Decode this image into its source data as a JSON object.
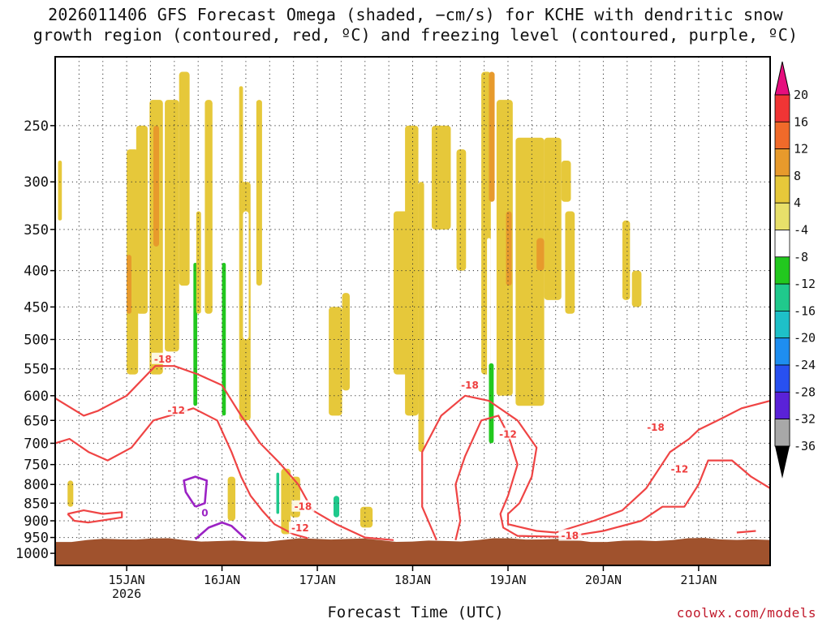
{
  "title_line1": "2026011406 GFS Forecast Omega (shaded, −cm/s) for KCHE with dendritic snow",
  "title_line2": "growth region (contoured, red, ºC) and freezing level (contoured, purple, ºC)",
  "credit": "coolwx.com/models",
  "chart_data": {
    "type": "heatmap",
    "xlabel": "Forecast Time (UTC)",
    "ylabel": "",
    "x_ticks": [
      {
        "label": "15JAN",
        "sub": "2026",
        "day": 15
      },
      {
        "label": "16JAN",
        "sub": "",
        "day": 16
      },
      {
        "label": "17JAN",
        "sub": "",
        "day": 17
      },
      {
        "label": "18JAN",
        "sub": "",
        "day": 18
      },
      {
        "label": "19JAN",
        "sub": "",
        "day": 19
      },
      {
        "label": "20JAN",
        "sub": "",
        "day": 20
      },
      {
        "label": "21JAN",
        "sub": "",
        "day": 21
      }
    ],
    "xlim": [
      14.25,
      21.75
    ],
    "y_ticks": [
      250,
      300,
      350,
      400,
      450,
      500,
      550,
      600,
      650,
      700,
      750,
      800,
      850,
      900,
      950,
      1000
    ],
    "ylim": [
      1040,
      200
    ],
    "y_scale": "log-pressure",
    "colorbar": {
      "labels": [
        "20",
        "16",
        "12",
        "8",
        "4",
        "-4",
        "-8",
        "-12",
        "-16",
        "-20",
        "-24",
        "-28",
        "-32",
        "-36"
      ],
      "colors": [
        "#f03535",
        "#f06a2a",
        "#e79a2c",
        "#e6c83a",
        "#e8e06a",
        "#ffffff",
        "#22c81e",
        "#20c98c",
        "#1ec0c8",
        "#1e8ef0",
        "#2850f0",
        "#5a22d8",
        "#8a1cc0",
        "#a8a8a8"
      ],
      "top_arrow_color": "#e60e7e",
      "bottom_arrow_color": "#000000"
    },
    "terrain_color": "#a0522d",
    "surface_pressure": 958,
    "omega_shading": [
      {
        "x0": 14.28,
        "x1": 14.32,
        "p0": 280,
        "p1": 340,
        "v": 5
      },
      {
        "x0": 14.38,
        "x1": 14.44,
        "p0": 790,
        "p1": 860,
        "v": 5
      },
      {
        "x0": 14.92,
        "x1": 14.95,
        "p0": 200,
        "p1": 240,
        "v": -6
      },
      {
        "x0": 15.0,
        "x1": 15.04,
        "p0": 210,
        "p1": 260,
        "v": -6
      },
      {
        "x0": 15.0,
        "x1": 15.12,
        "p0": 270,
        "p1": 560,
        "v": 5
      },
      {
        "x0": 15.0,
        "x1": 15.05,
        "p0": 380,
        "p1": 460,
        "v": 10
      },
      {
        "x0": 15.1,
        "x1": 15.22,
        "p0": 250,
        "p1": 460,
        "v": 5
      },
      {
        "x0": 15.24,
        "x1": 15.38,
        "p0": 230,
        "p1": 560,
        "v": 6
      },
      {
        "x0": 15.28,
        "x1": 15.34,
        "p0": 250,
        "p1": 370,
        "v": 10
      },
      {
        "x0": 15.4,
        "x1": 15.55,
        "p0": 230,
        "p1": 520,
        "v": 5
      },
      {
        "x0": 15.55,
        "x1": 15.66,
        "p0": 210,
        "p1": 420,
        "v": 5
      },
      {
        "x0": 15.68,
        "x1": 15.76,
        "p0": 300,
        "p1": 900,
        "v": -6
      },
      {
        "x0": 15.7,
        "x1": 15.74,
        "p0": 390,
        "p1": 620,
        "v": -10
      },
      {
        "x0": 15.73,
        "x1": 15.78,
        "p0": 330,
        "p1": 460,
        "v": 6
      },
      {
        "x0": 15.82,
        "x1": 15.9,
        "p0": 230,
        "p1": 460,
        "v": 5
      },
      {
        "x0": 15.98,
        "x1": 16.06,
        "p0": 300,
        "p1": 820,
        "v": -6
      },
      {
        "x0": 16.0,
        "x1": 16.04,
        "p0": 390,
        "p1": 640,
        "v": -11
      },
      {
        "x0": 16.08,
        "x1": 16.16,
        "p0": 210,
        "p1": 650,
        "v": -6
      },
      {
        "x0": 16.06,
        "x1": 16.14,
        "p0": 780,
        "p1": 900,
        "v": 5
      },
      {
        "x0": 16.18,
        "x1": 16.3,
        "p0": 300,
        "p1": 650,
        "v": 5
      },
      {
        "x0": 16.22,
        "x1": 16.28,
        "p0": 330,
        "p1": 500,
        "v": -6
      },
      {
        "x0": 16.36,
        "x1": 16.42,
        "p0": 230,
        "p1": 420,
        "v": 5
      },
      {
        "x0": 16.56,
        "x1": 16.6,
        "p0": 720,
        "p1": 900,
        "v": -6
      },
      {
        "x0": 16.57,
        "x1": 16.6,
        "p0": 770,
        "p1": 880,
        "v": -12
      },
      {
        "x0": 16.62,
        "x1": 16.72,
        "p0": 760,
        "p1": 940,
        "v": 5
      },
      {
        "x0": 16.72,
        "x1": 16.82,
        "p0": 780,
        "p1": 890,
        "v": 5
      },
      {
        "x0": 16.18,
        "x1": 16.22,
        "p0": 220,
        "p1": 330,
        "v": 5
      },
      {
        "x0": 16.85,
        "x1": 16.9,
        "p0": 380,
        "p1": 420,
        "v": -6
      },
      {
        "x0": 16.9,
        "x1": 16.92,
        "p0": 480,
        "p1": 500,
        "v": -6
      },
      {
        "x0": 17.12,
        "x1": 17.26,
        "p0": 450,
        "p1": 640,
        "v": 5
      },
      {
        "x0": 17.26,
        "x1": 17.34,
        "p0": 430,
        "p1": 590,
        "v": 5
      },
      {
        "x0": 17.14,
        "x1": 17.26,
        "p0": 810,
        "p1": 910,
        "v": -7
      },
      {
        "x0": 17.17,
        "x1": 17.23,
        "p0": 830,
        "p1": 890,
        "v": -12
      },
      {
        "x0": 17.45,
        "x1": 17.58,
        "p0": 860,
        "p1": 920,
        "v": 5
      },
      {
        "x0": 17.8,
        "x1": 17.95,
        "p0": 330,
        "p1": 560,
        "v": 5
      },
      {
        "x0": 17.92,
        "x1": 18.06,
        "p0": 250,
        "p1": 640,
        "v": 5
      },
      {
        "x0": 18.06,
        "x1": 18.12,
        "p0": 300,
        "p1": 720,
        "v": 5
      },
      {
        "x0": 18.2,
        "x1": 18.4,
        "p0": 250,
        "p1": 350,
        "v": 5
      },
      {
        "x0": 18.36,
        "x1": 18.42,
        "p0": 400,
        "p1": 460,
        "v": -6
      },
      {
        "x0": 18.46,
        "x1": 18.56,
        "p0": 270,
        "p1": 400,
        "v": 5
      },
      {
        "x0": 18.72,
        "x1": 18.82,
        "p0": 210,
        "p1": 560,
        "v": 5
      },
      {
        "x0": 18.8,
        "x1": 18.86,
        "p0": 210,
        "p1": 320,
        "v": 10
      },
      {
        "x0": 18.78,
        "x1": 18.82,
        "p0": 360,
        "p1": 700,
        "v": -6
      },
      {
        "x0": 18.8,
        "x1": 18.85,
        "p0": 540,
        "p1": 700,
        "v": -9
      },
      {
        "x0": 18.62,
        "x1": 18.68,
        "p0": 760,
        "p1": 800,
        "v": -6
      },
      {
        "x0": 18.88,
        "x1": 19.05,
        "p0": 230,
        "p1": 600,
        "v": 5
      },
      {
        "x0": 18.98,
        "x1": 19.04,
        "p0": 330,
        "p1": 420,
        "v": 10
      },
      {
        "x0": 19.08,
        "x1": 19.38,
        "p0": 260,
        "p1": 620,
        "v": 5
      },
      {
        "x0": 19.38,
        "x1": 19.56,
        "p0": 260,
        "p1": 440,
        "v": 5
      },
      {
        "x0": 19.3,
        "x1": 19.38,
        "p0": 360,
        "p1": 400,
        "v": 10
      },
      {
        "x0": 19.6,
        "x1": 19.7,
        "p0": 330,
        "p1": 460,
        "v": 5
      },
      {
        "x0": 19.56,
        "x1": 19.66,
        "p0": 280,
        "p1": 320,
        "v": 5
      },
      {
        "x0": 20.2,
        "x1": 20.28,
        "p0": 340,
        "p1": 440,
        "v": 5
      },
      {
        "x0": 20.3,
        "x1": 20.4,
        "p0": 400,
        "p1": 450,
        "v": 5
      },
      {
        "x0": 20.94,
        "x1": 21.05,
        "p0": 520,
        "p1": 560,
        "v": -6
      },
      {
        "x0": 20.84,
        "x1": 20.9,
        "p0": 590,
        "p1": 650,
        "v": -6
      },
      {
        "x0": 21.22,
        "x1": 21.3,
        "p0": 300,
        "p1": 310,
        "v": -6
      }
    ],
    "contours": [
      {
        "kind": "dgz",
        "label": "-18",
        "points": [
          [
            14.25,
            605
          ],
          [
            14.55,
            640
          ],
          [
            14.7,
            630
          ],
          [
            15.0,
            600
          ],
          [
            15.3,
            545
          ],
          [
            15.5,
            545
          ],
          [
            15.75,
            560
          ],
          [
            16.0,
            580
          ],
          [
            16.2,
            640
          ],
          [
            16.4,
            700
          ],
          [
            16.6,
            745
          ],
          [
            16.8,
            800
          ],
          [
            16.95,
            870
          ],
          [
            17.2,
            910
          ],
          [
            17.5,
            950
          ],
          [
            17.8,
            958
          ]
        ]
      },
      {
        "kind": "dgz",
        "label": "-12",
        "points": [
          [
            14.25,
            700
          ],
          [
            14.4,
            690
          ],
          [
            14.6,
            720
          ],
          [
            14.8,
            740
          ],
          [
            15.05,
            710
          ],
          [
            15.28,
            650
          ],
          [
            15.45,
            640
          ],
          [
            15.7,
            625
          ],
          [
            15.95,
            650
          ],
          [
            16.1,
            720
          ],
          [
            16.2,
            780
          ],
          [
            16.3,
            830
          ],
          [
            16.42,
            870
          ],
          [
            16.55,
            910
          ],
          [
            16.75,
            940
          ],
          [
            16.9,
            952
          ]
        ]
      },
      {
        "kind": "dgz",
        "label": "",
        "points": [
          [
            14.38,
            880
          ],
          [
            14.55,
            870
          ],
          [
            14.75,
            880
          ],
          [
            14.95,
            875
          ],
          [
            14.95,
            890
          ],
          [
            14.6,
            905
          ],
          [
            14.45,
            900
          ],
          [
            14.38,
            880
          ]
        ]
      },
      {
        "kind": "dgz",
        "label": "-18",
        "points": [
          [
            18.25,
            958
          ],
          [
            18.1,
            860
          ],
          [
            18.1,
            720
          ],
          [
            18.3,
            640
          ],
          [
            18.55,
            600
          ],
          [
            18.8,
            610
          ],
          [
            19.1,
            650
          ],
          [
            19.3,
            710
          ],
          [
            19.25,
            780
          ],
          [
            19.12,
            850
          ],
          [
            19.0,
            880
          ],
          [
            19.0,
            910
          ],
          [
            19.3,
            930
          ],
          [
            19.5,
            935
          ],
          [
            19.9,
            900
          ],
          [
            20.2,
            870
          ],
          [
            20.45,
            810
          ],
          [
            20.7,
            720
          ],
          [
            20.9,
            690
          ],
          [
            21.0,
            670
          ],
          [
            21.2,
            650
          ],
          [
            21.45,
            625
          ],
          [
            21.75,
            610
          ]
        ]
      },
      {
        "kind": "dgz",
        "label": "-12",
        "points": [
          [
            18.45,
            958
          ],
          [
            18.5,
            900
          ],
          [
            18.45,
            800
          ],
          [
            18.55,
            730
          ],
          [
            18.72,
            650
          ],
          [
            18.9,
            640
          ],
          [
            19.0,
            680
          ],
          [
            19.1,
            750
          ],
          [
            19.0,
            830
          ],
          [
            18.92,
            880
          ],
          [
            18.95,
            920
          ],
          [
            19.1,
            945
          ],
          [
            19.6,
            948
          ],
          [
            20.0,
            930
          ],
          [
            20.4,
            900
          ],
          [
            20.62,
            860
          ],
          [
            20.85,
            860
          ],
          [
            21.0,
            800
          ],
          [
            21.1,
            740
          ],
          [
            21.35,
            740
          ],
          [
            21.55,
            780
          ],
          [
            21.75,
            810
          ]
        ]
      },
      {
        "kind": "dgz",
        "label": "",
        "points": [
          [
            21.4,
            935
          ],
          [
            21.6,
            930
          ]
        ]
      },
      {
        "kind": "freezing",
        "label": "0",
        "points": [
          [
            15.72,
            860
          ],
          [
            15.62,
            820
          ],
          [
            15.6,
            790
          ],
          [
            15.72,
            780
          ],
          [
            15.84,
            790
          ],
          [
            15.82,
            850
          ],
          [
            15.72,
            860
          ]
        ]
      },
      {
        "kind": "freezing",
        "label": "",
        "points": [
          [
            15.72,
            955
          ],
          [
            15.86,
            920
          ],
          [
            16.0,
            905
          ],
          [
            16.1,
            915
          ],
          [
            16.25,
            955
          ]
        ]
      }
    ],
    "contour_labels": [
      {
        "text": "-18",
        "x": 15.38,
        "p": 533,
        "kind": "dgz"
      },
      {
        "text": "-12",
        "x": 15.52,
        "p": 629,
        "kind": "dgz"
      },
      {
        "text": "-18",
        "x": 16.85,
        "p": 860,
        "kind": "dgz"
      },
      {
        "text": "-12",
        "x": 16.82,
        "p": 922,
        "kind": "dgz"
      },
      {
        "text": "-18",
        "x": 18.6,
        "p": 580,
        "kind": "dgz"
      },
      {
        "text": "-12",
        "x": 19.0,
        "p": 680,
        "kind": "dgz"
      },
      {
        "text": "-18",
        "x": 19.65,
        "p": 945,
        "kind": "dgz"
      },
      {
        "text": "-18",
        "x": 20.55,
        "p": 665,
        "kind": "dgz"
      },
      {
        "text": "-12",
        "x": 20.8,
        "p": 762,
        "kind": "dgz"
      },
      {
        "text": "0",
        "x": 15.82,
        "p": 878,
        "kind": "freezing"
      }
    ]
  }
}
